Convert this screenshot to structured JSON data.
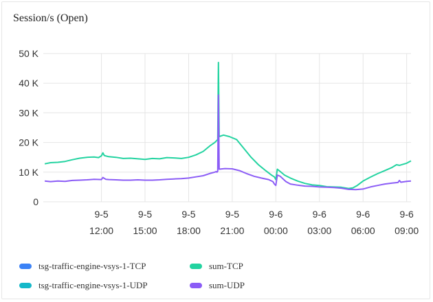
{
  "panel": {
    "title": "Session/s (Open)"
  },
  "colors": {
    "tsg_tcp": "#3b82f6",
    "tsg_udp": "#14b8c9",
    "sum_tcp": "#22d3a0",
    "sum_udp": "#8b5cf6",
    "grid": "#e5e5e5",
    "tick_text": "#333333"
  },
  "legend": [
    {
      "label": "tsg-traffic-engine-vsys-1-TCP",
      "color": "#3b82f6"
    },
    {
      "label": "sum-TCP",
      "color": "#22d3a0"
    },
    {
      "label": "tsg-traffic-engine-vsys-1-UDP",
      "color": "#14b8c9"
    },
    {
      "label": "sum-UDP",
      "color": "#8b5cf6"
    }
  ],
  "chart_data": {
    "type": "line",
    "title": "Session/s (Open)",
    "xlabel": "",
    "ylabel": "",
    "ylim": [
      0,
      50000
    ],
    "y_ticks": [
      {
        "value": 0,
        "label": "0"
      },
      {
        "value": 10000,
        "label": "10 K"
      },
      {
        "value": 20000,
        "label": "20 K"
      },
      {
        "value": 30000,
        "label": "30 K"
      },
      {
        "value": 40000,
        "label": "40 K"
      },
      {
        "value": 50000,
        "label": "50 K"
      }
    ],
    "x_range_hours": [
      8,
      33.3
    ],
    "x_ticks": [
      {
        "hour": 12,
        "date": "9-5",
        "time": "12:00"
      },
      {
        "hour": 15,
        "date": "9-5",
        "time": "15:00"
      },
      {
        "hour": 18,
        "date": "9-5",
        "time": "18:00"
      },
      {
        "hour": 21,
        "date": "9-5",
        "time": "21:00"
      },
      {
        "hour": 24,
        "date": "9-6",
        "time": "00:00"
      },
      {
        "hour": 27,
        "date": "9-6",
        "time": "03:00"
      },
      {
        "hour": 30,
        "date": "9-6",
        "time": "06:00"
      },
      {
        "hour": 33,
        "date": "9-6",
        "time": "09:00"
      }
    ],
    "grid": true,
    "legend_position": "bottom-left",
    "series": [
      {
        "name": "sum-TCP",
        "color": "#22d3a0",
        "points": [
          [
            8.1,
            12800
          ],
          [
            8.5,
            13200
          ],
          [
            9,
            13300
          ],
          [
            9.5,
            13600
          ],
          [
            10,
            14200
          ],
          [
            10.5,
            14700
          ],
          [
            11,
            15000
          ],
          [
            11.5,
            15100
          ],
          [
            11.8,
            14900
          ],
          [
            12.0,
            15500
          ],
          [
            12.1,
            16500
          ],
          [
            12.2,
            15600
          ],
          [
            12.5,
            15200
          ],
          [
            13,
            15000
          ],
          [
            13.5,
            14600
          ],
          [
            14,
            14700
          ],
          [
            14.5,
            14500
          ],
          [
            15,
            14300
          ],
          [
            15.5,
            14600
          ],
          [
            16,
            14500
          ],
          [
            16.5,
            14900
          ],
          [
            17,
            14800
          ],
          [
            17.5,
            14600
          ],
          [
            18,
            15000
          ],
          [
            18.5,
            15800
          ],
          [
            19,
            17000
          ],
          [
            19.5,
            19000
          ],
          [
            19.8,
            20000
          ],
          [
            20.0,
            21000
          ],
          [
            20.05,
            47000
          ],
          [
            20.1,
            22000
          ],
          [
            20.4,
            22500
          ],
          [
            20.8,
            22000
          ],
          [
            21.3,
            21000
          ],
          [
            21.8,
            18000
          ],
          [
            22.3,
            15000
          ],
          [
            22.8,
            12500
          ],
          [
            23.3,
            10500
          ],
          [
            23.7,
            9000
          ],
          [
            23.9,
            8400
          ],
          [
            24.0,
            7500
          ],
          [
            24.1,
            11000
          ],
          [
            24.3,
            10200
          ],
          [
            24.6,
            9000
          ],
          [
            25,
            8000
          ],
          [
            25.5,
            7000
          ],
          [
            26,
            6200
          ],
          [
            26.5,
            5700
          ],
          [
            27,
            5500
          ],
          [
            27.5,
            5100
          ],
          [
            28,
            5000
          ],
          [
            28.5,
            4900
          ],
          [
            29,
            4500
          ],
          [
            29.3,
            4700
          ],
          [
            29.6,
            5500
          ],
          [
            30,
            7000
          ],
          [
            30.5,
            8300
          ],
          [
            31,
            9500
          ],
          [
            31.5,
            10500
          ],
          [
            32,
            11600
          ],
          [
            32.3,
            12500
          ],
          [
            32.5,
            12300
          ],
          [
            33,
            13000
          ],
          [
            33.3,
            13800
          ]
        ]
      },
      {
        "name": "sum-UDP",
        "color": "#8b5cf6",
        "points": [
          [
            8.1,
            7000
          ],
          [
            8.5,
            6800
          ],
          [
            9,
            7000
          ],
          [
            9.5,
            6900
          ],
          [
            10,
            7200
          ],
          [
            10.5,
            7300
          ],
          [
            11,
            7400
          ],
          [
            11.5,
            7600
          ],
          [
            12.0,
            7500
          ],
          [
            12.1,
            8200
          ],
          [
            12.3,
            7600
          ],
          [
            12.5,
            7500
          ],
          [
            13,
            7400
          ],
          [
            13.5,
            7300
          ],
          [
            14,
            7300
          ],
          [
            14.5,
            7400
          ],
          [
            15,
            7300
          ],
          [
            15.5,
            7300
          ],
          [
            16,
            7400
          ],
          [
            16.5,
            7600
          ],
          [
            17,
            7700
          ],
          [
            17.5,
            7800
          ],
          [
            18,
            8000
          ],
          [
            18.5,
            8400
          ],
          [
            19,
            8800
          ],
          [
            19.5,
            9600
          ],
          [
            19.8,
            10000
          ],
          [
            19.9,
            10200
          ],
          [
            19.95,
            10000
          ],
          [
            20.0,
            10300
          ],
          [
            20.05,
            36000
          ],
          [
            20.1,
            11000
          ],
          [
            20.5,
            11200
          ],
          [
            21,
            11100
          ],
          [
            21.5,
            10500
          ],
          [
            22,
            9500
          ],
          [
            22.5,
            8600
          ],
          [
            23,
            8000
          ],
          [
            23.5,
            7500
          ],
          [
            23.8,
            6800
          ],
          [
            23.9,
            6000
          ],
          [
            24.0,
            5500
          ],
          [
            24.1,
            9000
          ],
          [
            24.3,
            8600
          ],
          [
            24.7,
            6800
          ],
          [
            25,
            6000
          ],
          [
            25.5,
            5600
          ],
          [
            26,
            5300
          ],
          [
            26.5,
            5200
          ],
          [
            27,
            5000
          ],
          [
            27.5,
            4900
          ],
          [
            28,
            4800
          ],
          [
            28.5,
            4600
          ],
          [
            29,
            4200
          ],
          [
            29.5,
            4100
          ],
          [
            30,
            4300
          ],
          [
            30.5,
            5000
          ],
          [
            31,
            5500
          ],
          [
            31.5,
            6000
          ],
          [
            32,
            6300
          ],
          [
            32.4,
            6500
          ],
          [
            32.5,
            7200
          ],
          [
            32.6,
            6600
          ],
          [
            33,
            6900
          ],
          [
            33.3,
            7000
          ]
        ]
      }
    ]
  }
}
